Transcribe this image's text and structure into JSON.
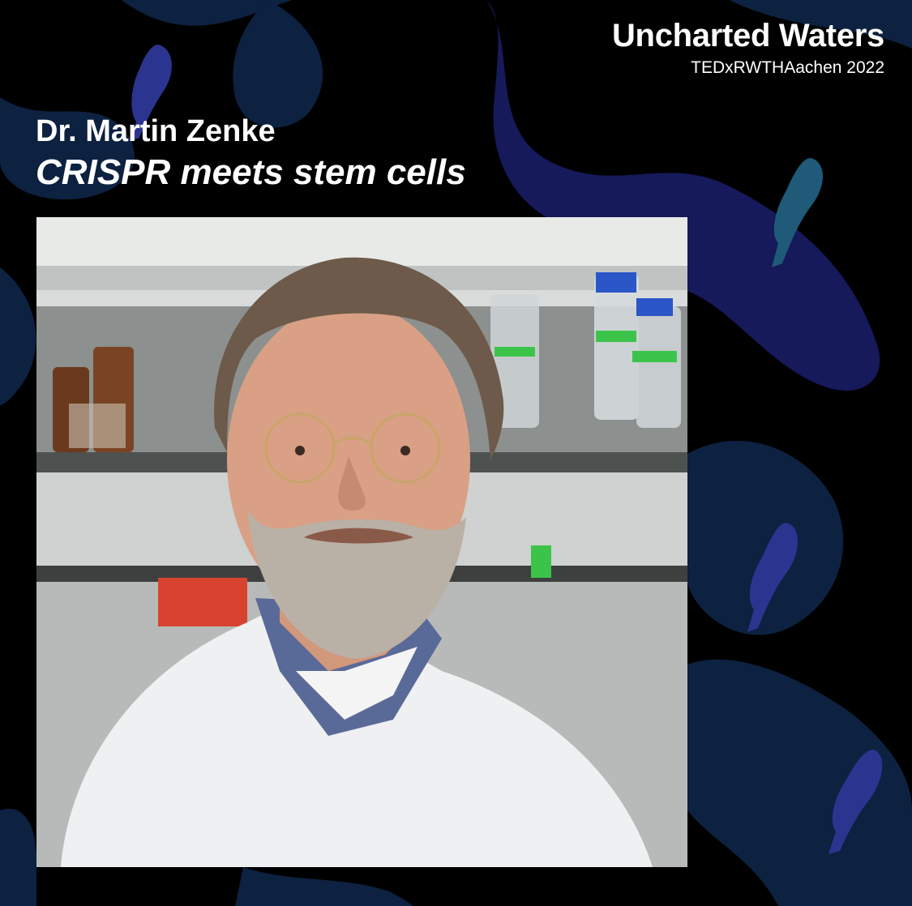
{
  "event": {
    "title": "Uncharted Waters",
    "subtitle": "TEDxRWTHAachen 2022"
  },
  "speaker": {
    "name": "Dr. Martin Zenke",
    "talk_title": "CRISPR meets stem cells"
  },
  "colors": {
    "background": "#000000",
    "blob_dark": "#0d2140",
    "blob_navy": "#16195a",
    "fish": "#2b3590",
    "fish_teal": "#1f5a78",
    "text": "#ffffff"
  },
  "icons": [
    "fish-icon"
  ]
}
